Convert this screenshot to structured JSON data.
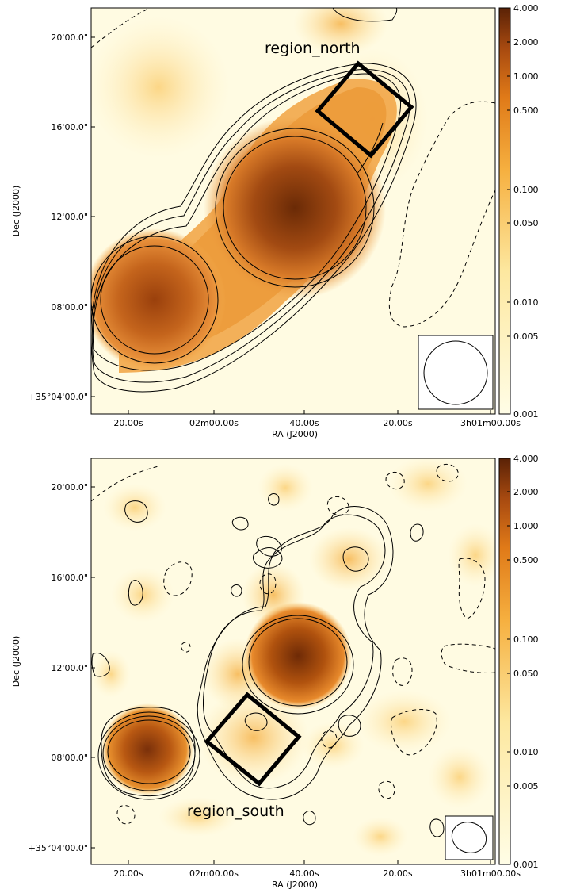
{
  "panels": [
    {
      "region_label": "region_north",
      "y_axis_label": "Dec (J2000)",
      "x_axis_label": "RA (J2000)",
      "y_ticks": [
        "20'00.0\"",
        "16'00.0\"",
        "12'00.0\"",
        "08'00.0\"",
        "+35°04'00.0\""
      ],
      "x_ticks": [
        "20.00s",
        "02m00.00s",
        "40.00s",
        "20.00s",
        "3h01m00.00s"
      ],
      "colorbar_ticks": [
        "4.000",
        "2.000",
        "1.000",
        "0.500",
        "0.100",
        "0.050",
        "0.010",
        "0.005",
        "0.001"
      ]
    },
    {
      "region_label": "region_south",
      "y_axis_label": "Dec (J2000)",
      "x_axis_label": "RA (J2000)",
      "y_ticks": [
        "20'00.0\"",
        "16'00.0\"",
        "12'00.0\"",
        "08'00.0\"",
        "+35°04'00.0\""
      ],
      "x_ticks": [
        "20.00s",
        "02m00.00s",
        "40.00s",
        "20.00s",
        "3h01m00.00s"
      ],
      "colorbar_ticks": [
        "4.000",
        "2.000",
        "1.000",
        "0.500",
        "0.100",
        "0.050",
        "0.010",
        "0.005",
        "0.001"
      ]
    }
  ],
  "colors": {
    "colormap_low": "#fffbe0",
    "colormap_mid": "#f6a638",
    "colormap_high": "#5e2406"
  }
}
